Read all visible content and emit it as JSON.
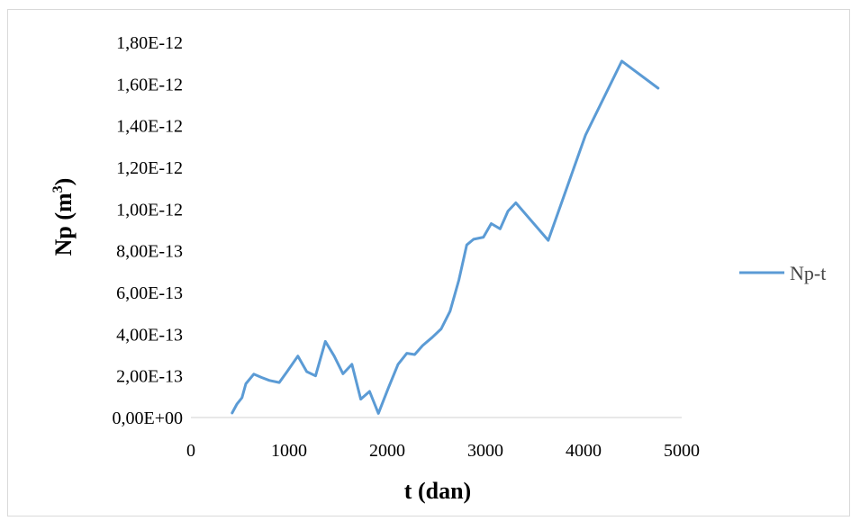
{
  "chart_data": {
    "type": "line",
    "xlabel": "t (dan)",
    "ylabel_main": "Np (m",
    "ylabel_sup": "3",
    "ylabel_close": ")",
    "xlim": [
      0,
      5000
    ],
    "ylim": [
      0,
      1.8e-12
    ],
    "x_ticks": [
      "0",
      "1000",
      "2000",
      "3000",
      "4000",
      "5000"
    ],
    "y_ticks": [
      "0,00E+00",
      "2,00E-13",
      "4,00E-13",
      "6,00E-13",
      "8,00E-13",
      "1,00E-12",
      "1,20E-12",
      "1,40E-12",
      "1,60E-12",
      "1,80E-12"
    ],
    "legend_position": "right",
    "grid": false,
    "series": [
      {
        "name": "Np-t",
        "color": "#5b9bd5",
        "x": [
          420,
          470,
          520,
          560,
          640,
          720,
          800,
          900,
          980,
          1090,
          1180,
          1270,
          1370,
          1460,
          1550,
          1640,
          1730,
          1820,
          1910,
          2010,
          2110,
          2200,
          2280,
          2360,
          2460,
          2550,
          2640,
          2730,
          2810,
          2880,
          2980,
          3060,
          3150,
          3230,
          3310,
          3640,
          4020,
          4390,
          4760
        ],
        "y": [
          2.2e-14,
          6.5e-14,
          9.5e-14,
          1.62e-13,
          2.08e-13,
          1.92e-13,
          1.78e-13,
          1.68e-13,
          2.2e-13,
          2.95e-13,
          2.2e-13,
          2e-13,
          3.65e-13,
          2.95e-13,
          2.1e-13,
          2.55e-13,
          8.8e-14,
          1.25e-13,
          2e-14,
          1.4e-13,
          2.55e-13,
          3.08e-13,
          3.02e-13,
          3.45e-13,
          3.85e-13,
          4.25e-13,
          5.1e-13,
          6.6e-13,
          8.28e-13,
          8.55e-13,
          8.65e-13,
          9.3e-13,
          9.05e-13,
          9.9e-13,
          1.03e-12,
          8.5e-13,
          1.355e-12,
          1.71e-12,
          1.58e-12
        ]
      }
    ]
  }
}
